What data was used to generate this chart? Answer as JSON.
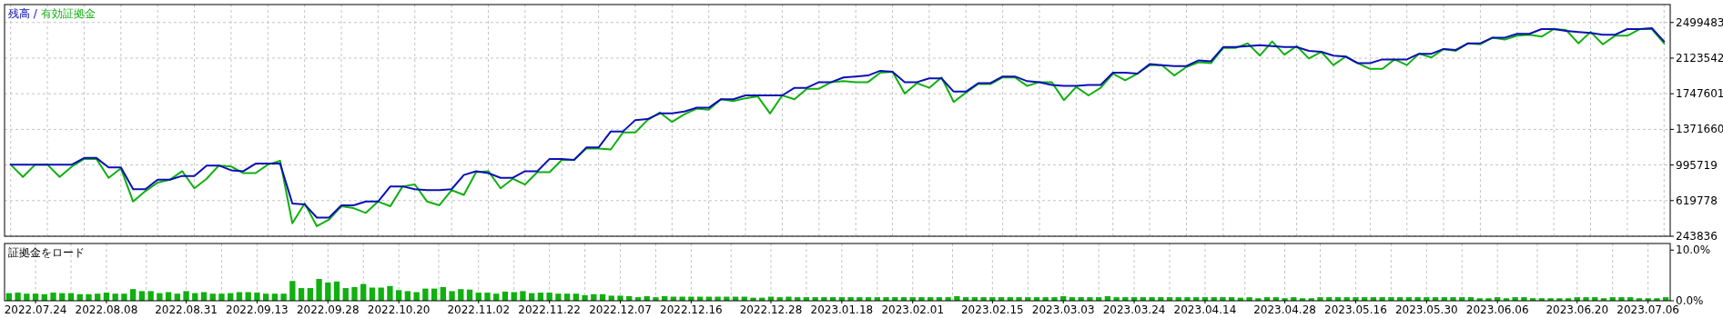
{
  "chart_data": [
    {
      "type": "line",
      "legend": "top left",
      "annotations": [
        "/"
      ],
      "grid": true,
      "tick_labels": "y",
      "ylim": [
        243836,
        2689000
      ],
      "yticks": [
        243836,
        619778,
        995719,
        1371660,
        1747601,
        2123542,
        2499483
      ],
      "categories": [
        null,
        null,
        null,
        null,
        null,
        null,
        null,
        null,
        null,
        null,
        null,
        null,
        null,
        null,
        null,
        null,
        null,
        null,
        null,
        null,
        null,
        null,
        null,
        null,
        null,
        null,
        null,
        null,
        null,
        null,
        null,
        null,
        null,
        null,
        null,
        null,
        null,
        null,
        null,
        null,
        null,
        null,
        null,
        null,
        null,
        null,
        null,
        null,
        null,
        null,
        null,
        null,
        null,
        null,
        null,
        null,
        null,
        null,
        null,
        null,
        null,
        null,
        null,
        null,
        null,
        null,
        null,
        null,
        null,
        null,
        null,
        null,
        null,
        null,
        null,
        null,
        null,
        null,
        null,
        null,
        null,
        null,
        null,
        null,
        null,
        null,
        null,
        null,
        null,
        null,
        null,
        null,
        null,
        null,
        null,
        null,
        null,
        null,
        null,
        null,
        null,
        null,
        null,
        null,
        null,
        null,
        null,
        null,
        null,
        null,
        null,
        null,
        null,
        null,
        null,
        null,
        null,
        null,
        null,
        null,
        null,
        null,
        null,
        null,
        null,
        null,
        null,
        null,
        null,
        null,
        null,
        null,
        null,
        null,
        null,
        null
      ],
      "series": [
        {
          "name": "有効証拠金",
          "color": "#10b010",
          "values": [
            1000000,
            870000,
            1000000,
            1000000,
            870000,
            980000,
            1060000,
            1060000,
            860000,
            960000,
            610000,
            720000,
            810000,
            840000,
            930000,
            750000,
            850000,
            990000,
            980000,
            910000,
            910000,
            1000000,
            1040000,
            380000,
            590000,
            350000,
            420000,
            560000,
            540000,
            490000,
            610000,
            560000,
            770000,
            790000,
            610000,
            570000,
            730000,
            680000,
            920000,
            930000,
            750000,
            850000,
            790000,
            920000,
            920000,
            1050000,
            1050000,
            1170000,
            1170000,
            1160000,
            1340000,
            1340000,
            1470000,
            1550000,
            1450000,
            1530000,
            1590000,
            1580000,
            1690000,
            1670000,
            1700000,
            1720000,
            1540000,
            1730000,
            1690000,
            1800000,
            1800000,
            1870000,
            1880000,
            1870000,
            1870000,
            1970000,
            1980000,
            1750000,
            1860000,
            1810000,
            1920000,
            1660000,
            1760000,
            1850000,
            1850000,
            1920000,
            1920000,
            1830000,
            1870000,
            1870000,
            1680000,
            1820000,
            1730000,
            1810000,
            1960000,
            1890000,
            1960000,
            2050000,
            2050000,
            1940000,
            2030000,
            2080000,
            2070000,
            2230000,
            2230000,
            2280000,
            2150000,
            2300000,
            2160000,
            2250000,
            2120000,
            2190000,
            2050000,
            2140000,
            2070000,
            2010000,
            2010000,
            2110000,
            2050000,
            2170000,
            2130000,
            2220000,
            2200000,
            2280000,
            2270000,
            2340000,
            2320000,
            2360000,
            2370000,
            2350000,
            2430000,
            2420000,
            2280000,
            2400000,
            2270000,
            2360000,
            2360000,
            2430000,
            2430000,
            2280000
          ]
        },
        {
          "name": "残高",
          "color": "#0a10b4",
          "values": [
            1000000,
            1000000,
            1000000,
            1000000,
            1000000,
            1000000,
            1070000,
            1070000,
            970000,
            970000,
            740000,
            740000,
            840000,
            840000,
            880000,
            880000,
            990000,
            990000,
            940000,
            930000,
            1010000,
            1010000,
            1010000,
            590000,
            580000,
            440000,
            440000,
            570000,
            570000,
            610000,
            610000,
            770000,
            770000,
            740000,
            730000,
            730000,
            740000,
            890000,
            930000,
            910000,
            860000,
            860000,
            930000,
            930000,
            1060000,
            1060000,
            1050000,
            1180000,
            1180000,
            1350000,
            1350000,
            1470000,
            1480000,
            1540000,
            1540000,
            1560000,
            1600000,
            1600000,
            1690000,
            1690000,
            1730000,
            1730000,
            1730000,
            1730000,
            1810000,
            1810000,
            1870000,
            1870000,
            1920000,
            1930000,
            1940000,
            1990000,
            1980000,
            1870000,
            1870000,
            1910000,
            1910000,
            1770000,
            1770000,
            1860000,
            1860000,
            1930000,
            1930000,
            1880000,
            1870000,
            1840000,
            1830000,
            1830000,
            1840000,
            1840000,
            1970000,
            1970000,
            1960000,
            2060000,
            2050000,
            2040000,
            2040000,
            2100000,
            2090000,
            2240000,
            2240000,
            2250000,
            2260000,
            2250000,
            2240000,
            2240000,
            2200000,
            2190000,
            2150000,
            2140000,
            2070000,
            2070000,
            2110000,
            2110000,
            2110000,
            2170000,
            2170000,
            2220000,
            2210000,
            2280000,
            2280000,
            2340000,
            2340000,
            2380000,
            2380000,
            2430000,
            2430000,
            2410000,
            2400000,
            2390000,
            2370000,
            2370000,
            2430000,
            2430000,
            2440000,
            2300000
          ]
        }
      ]
    },
    {
      "type": "bar",
      "title": "証拠金をロード",
      "grid": "x",
      "ylim": [
        0,
        11.3
      ],
      "yticks": [
        {
          "value": 0,
          "label": "0.0%"
        },
        {
          "value": 10,
          "label": "10.0%"
        }
      ],
      "categories": [
        null,
        null,
        null,
        "2022.07.24",
        null,
        null,
        null,
        null,
        null,
        null,
        null,
        "2022.08.08",
        null,
        null,
        null,
        null,
        null,
        null,
        null,
        null,
        "2022.08.31",
        null,
        null,
        null,
        null,
        null,
        null,
        null,
        "2022.09.13",
        null,
        null,
        null,
        null,
        null,
        null,
        null,
        "2022.09.28",
        null,
        null,
        null,
        null,
        null,
        null,
        null,
        "2022.10.20",
        null,
        null,
        null,
        null,
        null,
        null,
        null,
        null,
        "2022.11.02",
        null,
        null,
        null,
        null,
        null,
        null,
        null,
        "2022.11.22",
        null,
        null,
        null,
        null,
        null,
        null,
        null,
        "2022.12.07",
        null,
        null,
        null,
        null,
        null,
        null,
        null,
        "2022.12.16",
        null,
        null,
        null,
        null,
        null,
        null,
        null,
        null,
        "2022.12.28",
        null,
        null,
        null,
        null,
        null,
        null,
        null,
        "2023.01.18",
        null,
        null,
        null,
        null,
        null,
        null,
        null,
        "2023.02.01",
        null,
        null,
        null,
        null,
        null,
        null,
        null,
        null,
        "2023.02.15",
        null,
        null,
        null,
        null,
        null,
        null,
        null,
        "2023.03.03",
        null,
        null,
        null,
        null,
        null,
        null,
        null,
        "2023.03.24",
        null,
        null,
        null,
        null,
        null,
        null,
        null,
        "2023.04.14",
        null,
        null,
        null,
        null,
        null,
        null,
        null,
        null,
        "2023.04.28",
        null,
        null,
        null,
        null,
        null,
        null,
        null,
        "2023.05.16",
        null,
        null,
        null,
        null,
        null,
        null,
        null,
        "2023.05.30",
        null,
        null,
        null,
        null,
        null,
        null,
        null,
        "2023.06.06",
        null,
        null,
        null,
        null,
        null,
        null,
        null,
        null,
        "2023.06.20",
        null,
        null,
        null,
        null,
        null,
        null,
        null,
        "2023.07.06",
        null,
        null
      ],
      "color": "#10b010",
      "values": [
        1.5,
        1.6,
        1.4,
        1.4,
        1.3,
        1.6,
        1.5,
        1.5,
        1.3,
        1.3,
        1.4,
        1.6,
        1.4,
        1.4,
        2.3,
        1.9,
        1.9,
        1.5,
        1.7,
        1.4,
        1.9,
        1.5,
        1.7,
        1.4,
        1.4,
        1.5,
        1.7,
        1.7,
        1.6,
        1.4,
        1.4,
        1.4,
        3.9,
        2.5,
        2.5,
        4.3,
        3.6,
        3.8,
        2.5,
        2.7,
        3.3,
        2.6,
        2.6,
        2.9,
        2.1,
        1.9,
        1.7,
        2.4,
        2.4,
        2.7,
        1.9,
        2.3,
        2.2,
        1.6,
        1.6,
        1.4,
        1.8,
        1.7,
        1.9,
        1.5,
        1.6,
        1.6,
        1.4,
        1.4,
        1.4,
        1.1,
        1.3,
        1.3,
        1.0,
        1.0,
        0.9,
        0.7,
        0.9,
        0.7,
        0.9,
        0.8,
        0.8,
        0.8,
        0.8,
        0.8,
        0.8,
        0.8,
        0.8,
        0.8,
        0.6,
        0.6,
        0.8,
        0.7,
        0.8,
        0.7,
        0.7,
        0.7,
        0.7,
        0.7,
        0.7,
        0.7,
        0.7,
        0.7,
        0.7,
        0.7,
        0.7,
        0.7,
        0.7,
        0.7,
        0.7,
        0.7,
        0.7,
        0.9,
        0.7,
        0.7,
        0.7,
        0.7,
        0.7,
        0.7,
        0.7,
        0.7,
        0.7,
        0.7,
        0.7,
        0.9,
        0.7,
        0.7,
        0.7,
        0.7,
        0.9,
        0.7,
        0.7,
        0.7,
        0.7,
        0.7,
        0.7,
        0.7,
        0.7,
        0.7,
        0.7,
        0.7,
        0.7,
        0.7,
        0.7,
        0.6,
        0.7,
        0.5,
        0.7,
        0.7,
        0.5,
        0.7,
        0.5,
        0.5,
        0.7,
        0.7,
        0.7,
        0.7,
        0.7,
        0.7,
        0.7,
        0.7,
        0.7,
        0.7,
        0.7,
        0.7,
        0.7,
        0.7,
        0.7,
        0.7,
        0.7,
        0.7,
        0.5,
        0.5,
        0.7,
        0.5,
        0.7,
        0.7,
        0.5,
        0.5,
        0.5,
        0.5,
        0.5,
        0.7,
        0.7,
        0.7,
        0.5,
        0.7,
        0.7,
        0.7,
        0.5,
        0.5,
        0.5,
        0.7
      ]
    }
  ]
}
